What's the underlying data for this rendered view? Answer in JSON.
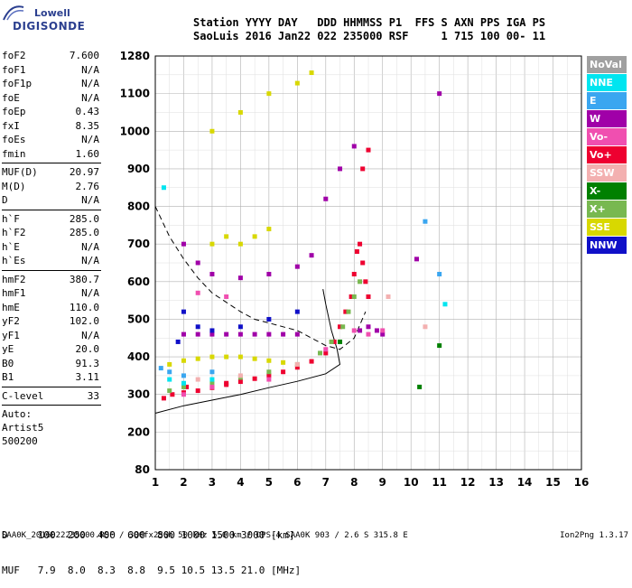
{
  "logo": {
    "line1": "Lowell",
    "line2": "DIGISONDE"
  },
  "header": {
    "line1": "Station YYYY DAY   DDD HHMMSS P1  FFS S AXN PPS IGA PS",
    "line2": "SaoLuis 2016 Jan22 022 235000 RSF     1 715 100 00- 11"
  },
  "params": {
    "group1": [
      {
        "k": "foF2",
        "v": "7.600"
      },
      {
        "k": "foF1",
        "v": "N/A"
      },
      {
        "k": "foF1p",
        "v": "N/A"
      },
      {
        "k": "foE",
        "v": "N/A"
      },
      {
        "k": "foEp",
        "v": "0.43"
      },
      {
        "k": "fxI",
        "v": "8.35"
      },
      {
        "k": "foEs",
        "v": "N/A"
      },
      {
        "k": "fmin",
        "v": "1.60"
      }
    ],
    "group2": [
      {
        "k": "MUF(D)",
        "v": "20.97"
      },
      {
        "k": "M(D)",
        "v": "2.76"
      },
      {
        "k": "D",
        "v": "N/A"
      }
    ],
    "group3": [
      {
        "k": "h`F",
        "v": "285.0"
      },
      {
        "k": "h`F2",
        "v": "285.0"
      },
      {
        "k": "h`E",
        "v": "N/A"
      },
      {
        "k": "h`Es",
        "v": "N/A"
      }
    ],
    "group4": [
      {
        "k": "hmF2",
        "v": "380.7"
      },
      {
        "k": "hmF1",
        "v": "N/A"
      },
      {
        "k": "hmE",
        "v": "110.0"
      },
      {
        "k": "yF2",
        "v": "102.0"
      },
      {
        "k": "yF1",
        "v": "N/A"
      },
      {
        "k": "yE",
        "v": "20.0"
      },
      {
        "k": "B0",
        "v": "91.3"
      },
      {
        "k": "B1",
        "v": "3.11"
      }
    ],
    "clevel": {
      "k": "C-level",
      "v": "33"
    },
    "auto": [
      "Auto:",
      "Artist5",
      "500200"
    ]
  },
  "legend": [
    {
      "label": "NoVal",
      "color": "#a0a0a0"
    },
    {
      "label": "NNE",
      "color": "#00e5f0"
    },
    {
      "label": "E",
      "color": "#3aa6f0"
    },
    {
      "label": "W",
      "color": "#a000a8"
    },
    {
      "label": "Vo-",
      "color": "#f04fb0"
    },
    {
      "label": "Vo+",
      "color": "#ee0030"
    },
    {
      "label": "SSW",
      "color": "#f3b0b0"
    },
    {
      "label": "X-",
      "color": "#008000"
    },
    {
      "label": "X+",
      "color": "#78b850"
    },
    {
      "label": "SSE",
      "color": "#d8d800"
    },
    {
      "label": "NNW",
      "color": "#1010c8"
    }
  ],
  "dmuf": {
    "d_line": "D     100  200  400  600  800 1000 1500 3000 [km]",
    "muf_line": "MUF   7.9  8.0  8.3  8.8  9.5 10.5 13.5 21.0 [MHz]"
  },
  "footer": "SAA0K_2016022235000.RSF / 300fx256h 50 kHz 5.0 km / DPS-4 SAA0K 903 / 2.6 S 315.8 E",
  "version": "Ion2Png 1.3.17",
  "chart_data": {
    "type": "scatter",
    "title": "",
    "xlabel": "",
    "ylabel": "",
    "x_ticks": [
      1,
      2,
      3,
      4,
      5,
      6,
      7,
      8,
      9,
      10,
      11,
      12,
      13,
      14,
      15,
      16
    ],
    "y_ticks": [
      80,
      200,
      300,
      400,
      500,
      600,
      700,
      800,
      900,
      1000,
      1100,
      1280
    ],
    "xlim": [
      1,
      16
    ],
    "ylim": [
      80,
      1280
    ],
    "grid": true,
    "legend_position": "right",
    "series": [
      {
        "name": "Vo+",
        "color": "#ee0030",
        "points": [
          [
            1.3,
            290
          ],
          [
            1.6,
            300
          ],
          [
            2.0,
            305
          ],
          [
            2.5,
            310
          ],
          [
            3.0,
            318
          ],
          [
            3.5,
            326
          ],
          [
            4.0,
            334
          ],
          [
            4.5,
            342
          ],
          [
            5.0,
            350
          ],
          [
            5.5,
            360
          ],
          [
            6.0,
            372
          ],
          [
            6.5,
            388
          ],
          [
            7.0,
            410
          ],
          [
            7.3,
            440
          ],
          [
            7.5,
            480
          ],
          [
            7.7,
            520
          ],
          [
            7.9,
            560
          ],
          [
            8.0,
            620
          ],
          [
            8.1,
            680
          ],
          [
            8.2,
            700
          ],
          [
            8.3,
            650
          ],
          [
            8.4,
            600
          ],
          [
            8.5,
            560
          ],
          [
            2.1,
            320
          ],
          [
            3.5,
            330
          ],
          [
            8.3,
            900
          ],
          [
            8.5,
            950
          ]
        ]
      },
      {
        "name": "X+",
        "color": "#78b850",
        "points": [
          [
            1.5,
            310
          ],
          [
            2.0,
            320
          ],
          [
            3.0,
            330
          ],
          [
            4.0,
            345
          ],
          [
            5.0,
            360
          ],
          [
            6.0,
            380
          ],
          [
            6.8,
            410
          ],
          [
            7.2,
            440
          ],
          [
            7.6,
            480
          ],
          [
            7.8,
            520
          ],
          [
            8.0,
            560
          ],
          [
            8.2,
            600
          ]
        ]
      },
      {
        "name": "SSE",
        "color": "#d8d800",
        "points": [
          [
            1.5,
            380
          ],
          [
            2.0,
            390
          ],
          [
            2.5,
            395
          ],
          [
            3.0,
            400
          ],
          [
            3.5,
            400
          ],
          [
            4.0,
            400
          ],
          [
            4.5,
            395
          ],
          [
            5.0,
            390
          ],
          [
            5.5,
            385
          ],
          [
            3.0,
            700
          ],
          [
            3.5,
            720
          ],
          [
            4.0,
            700
          ],
          [
            4.5,
            720
          ],
          [
            5.0,
            740
          ],
          [
            3.0,
            1000
          ],
          [
            4.0,
            1050
          ],
          [
            5.0,
            1100
          ],
          [
            6.0,
            1150
          ],
          [
            6.5,
            1200
          ]
        ]
      },
      {
        "name": "W",
        "color": "#a000a8",
        "points": [
          [
            2.0,
            460
          ],
          [
            2.5,
            460
          ],
          [
            3.0,
            460
          ],
          [
            3.5,
            460
          ],
          [
            4.0,
            460
          ],
          [
            4.5,
            460
          ],
          [
            5.0,
            460
          ],
          [
            5.5,
            460
          ],
          [
            6.0,
            460
          ],
          [
            8.2,
            470
          ],
          [
            8.5,
            480
          ],
          [
            8.8,
            470
          ],
          [
            9.0,
            460
          ],
          [
            7.0,
            820
          ],
          [
            7.5,
            900
          ],
          [
            8.0,
            960
          ],
          [
            2.0,
            700
          ],
          [
            2.5,
            650
          ],
          [
            3.0,
            620
          ],
          [
            4.0,
            610
          ],
          [
            5.0,
            620
          ],
          [
            6.0,
            640
          ],
          [
            6.5,
            670
          ],
          [
            10.2,
            660
          ],
          [
            11.0,
            1100
          ]
        ]
      },
      {
        "name": "E",
        "color": "#3aa6f0",
        "points": [
          [
            1.2,
            370
          ],
          [
            1.5,
            360
          ],
          [
            2.0,
            350
          ],
          [
            3.0,
            360
          ],
          [
            10.5,
            760
          ],
          [
            11.0,
            620
          ]
        ]
      },
      {
        "name": "NNE",
        "color": "#00e5f0",
        "points": [
          [
            1.3,
            850
          ],
          [
            1.5,
            340
          ],
          [
            2.0,
            330
          ],
          [
            3.0,
            340
          ],
          [
            11.2,
            540
          ]
        ]
      },
      {
        "name": "Vo-",
        "color": "#f04fb0",
        "points": [
          [
            2.0,
            300
          ],
          [
            3.0,
            320
          ],
          [
            5.0,
            340
          ],
          [
            7.0,
            420
          ],
          [
            8.0,
            470
          ],
          [
            8.5,
            460
          ],
          [
            9.0,
            470
          ],
          [
            2.5,
            570
          ],
          [
            3.5,
            560
          ]
        ]
      },
      {
        "name": "X-",
        "color": "#008000",
        "points": [
          [
            10.3,
            320
          ],
          [
            11.0,
            430
          ],
          [
            7.5,
            440
          ]
        ]
      },
      {
        "name": "NNW",
        "color": "#1010c8",
        "points": [
          [
            2.0,
            520
          ],
          [
            2.5,
            480
          ],
          [
            3.0,
            470
          ],
          [
            4.0,
            480
          ],
          [
            5.0,
            500
          ],
          [
            6.0,
            520
          ],
          [
            1.8,
            440
          ]
        ]
      },
      {
        "name": "SSW",
        "color": "#f3b0b0",
        "points": [
          [
            2.5,
            340
          ],
          [
            4.0,
            350
          ],
          [
            6.0,
            380
          ],
          [
            9.2,
            560
          ],
          [
            10.5,
            480
          ]
        ]
      }
    ]
  }
}
